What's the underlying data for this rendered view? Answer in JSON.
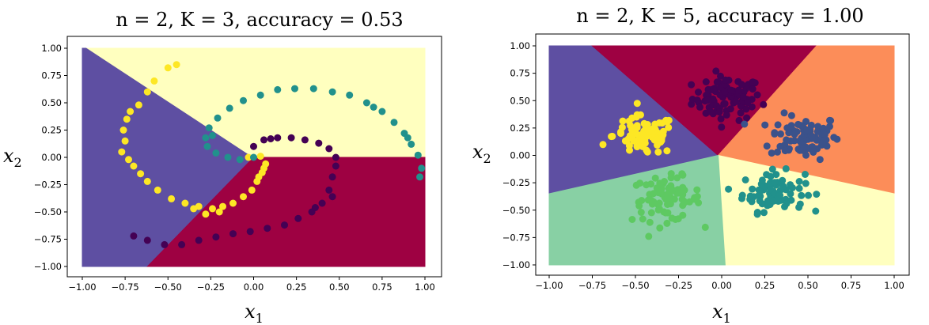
{
  "chart_data": [
    {
      "type": "scatter",
      "title": "n = 2, K = 3, accuracy = 0.53",
      "xlabel": "x1",
      "ylabel": "x2",
      "xlim": [
        -1.05,
        1.05
      ],
      "ylim": [
        -1.05,
        1.05
      ],
      "xticks": [
        "−1.00",
        "−0.75",
        "−0.50",
        "−0.25",
        "0.00",
        "0.25",
        "0.50",
        "0.75",
        "1.00"
      ],
      "yticks": [
        "−1.00",
        "−0.75",
        "−0.50",
        "−0.25",
        "0.00",
        "0.25",
        "0.50",
        "0.75",
        "1.00"
      ],
      "grid": false,
      "dataset": "three interleaved spirals",
      "background_regions": [
        {
          "color": "#5e4fa2",
          "polygon": [
            [
              -1,
              1
            ],
            [
              -0.97,
              1
            ],
            [
              0,
              0
            ],
            [
              -0.62,
              -1
            ],
            [
              -1,
              -1
            ]
          ]
        },
        {
          "color": "#ffffbf",
          "polygon": [
            [
              -0.97,
              1
            ],
            [
              1,
              1
            ],
            [
              1,
              0
            ],
            [
              0,
              0
            ]
          ]
        },
        {
          "color": "#9e0142",
          "polygon": [
            [
              0,
              0
            ],
            [
              1,
              0
            ],
            [
              1,
              -1
            ],
            [
              -0.62,
              -1
            ]
          ]
        }
      ],
      "series": [
        {
          "color": "#fde725",
          "points": [
            [
              -0.45,
              0.85
            ],
            [
              -0.5,
              0.82
            ],
            [
              -0.58,
              0.7
            ],
            [
              -0.62,
              0.6
            ],
            [
              -0.67,
              0.48
            ],
            [
              -0.72,
              0.42
            ],
            [
              -0.74,
              0.35
            ],
            [
              -0.76,
              0.25
            ],
            [
              -0.75,
              0.15
            ],
            [
              -0.77,
              0.05
            ],
            [
              -0.73,
              -0.02
            ],
            [
              -0.7,
              -0.08
            ],
            [
              -0.66,
              -0.15
            ],
            [
              -0.62,
              -0.22
            ],
            [
              -0.56,
              -0.3
            ],
            [
              -0.48,
              -0.38
            ],
            [
              -0.4,
              -0.42
            ],
            [
              -0.32,
              -0.45
            ],
            [
              -0.24,
              -0.47
            ],
            [
              -0.18,
              -0.45
            ],
            [
              -0.12,
              -0.42
            ],
            [
              -0.06,
              -0.36
            ],
            [
              -0.01,
              -0.3
            ],
            [
              0.02,
              -0.22
            ],
            [
              0.05,
              -0.14
            ],
            [
              0.07,
              -0.06
            ],
            [
              0.04,
              0.01
            ],
            [
              -0.03,
              0.0
            ],
            [
              -0.35,
              -0.47
            ],
            [
              -0.28,
              -0.52
            ],
            [
              -0.2,
              -0.5
            ],
            [
              0.03,
              -0.18
            ],
            [
              0.06,
              -0.1
            ]
          ]
        },
        {
          "color": "#21918c",
          "points": [
            [
              0.97,
              -0.18
            ],
            [
              0.98,
              -0.1
            ],
            [
              0.96,
              0.02
            ],
            [
              0.92,
              0.12
            ],
            [
              0.88,
              0.22
            ],
            [
              0.82,
              0.32
            ],
            [
              0.75,
              0.42
            ],
            [
              0.66,
              0.5
            ],
            [
              0.56,
              0.57
            ],
            [
              0.46,
              0.6
            ],
            [
              0.35,
              0.63
            ],
            [
              0.24,
              0.63
            ],
            [
              0.14,
              0.62
            ],
            [
              0.04,
              0.57
            ],
            [
              -0.06,
              0.52
            ],
            [
              -0.14,
              0.45
            ],
            [
              -0.21,
              0.36
            ],
            [
              -0.26,
              0.27
            ],
            [
              -0.28,
              0.18
            ],
            [
              -0.27,
              0.1
            ],
            [
              -0.22,
              0.04
            ],
            [
              -0.15,
              0.0
            ],
            [
              -0.08,
              -0.02
            ],
            [
              0.0,
              0.0
            ],
            [
              0.9,
              0.18
            ],
            [
              0.7,
              0.46
            ],
            [
              -0.24,
              0.2
            ]
          ]
        },
        {
          "color": "#440154",
          "points": [
            [
              0.0,
              0.1
            ],
            [
              0.06,
              0.16
            ],
            [
              0.14,
              0.18
            ],
            [
              0.22,
              0.18
            ],
            [
              0.3,
              0.16
            ],
            [
              0.38,
              0.13
            ],
            [
              0.44,
              0.08
            ],
            [
              0.48,
              0.0
            ],
            [
              0.48,
              -0.08
            ],
            [
              0.46,
              -0.18
            ],
            [
              0.44,
              -0.3
            ],
            [
              0.4,
              -0.42
            ],
            [
              0.34,
              -0.5
            ],
            [
              0.26,
              -0.56
            ],
            [
              0.18,
              -0.62
            ],
            [
              0.08,
              -0.65
            ],
            [
              -0.02,
              -0.68
            ],
            [
              -0.12,
              -0.7
            ],
            [
              -0.22,
              -0.73
            ],
            [
              -0.32,
              -0.76
            ],
            [
              -0.42,
              -0.8
            ],
            [
              -0.52,
              -0.8
            ],
            [
              -0.62,
              -0.76
            ],
            [
              -0.7,
              -0.72
            ],
            [
              0.46,
              -0.36
            ],
            [
              0.36,
              -0.46
            ],
            [
              0.1,
              0.17
            ]
          ]
        }
      ]
    },
    {
      "type": "scatter",
      "title": "n = 2, K = 5, accuracy = 1.00",
      "xlabel": "x1",
      "ylabel": "x2",
      "xlim": [
        -1.05,
        1.05
      ],
      "ylim": [
        -1.05,
        1.05
      ],
      "xticks": [
        "−1.00",
        "−0.75",
        "−0.50",
        "−0.25",
        "0.00",
        "0.25",
        "0.50",
        "0.75",
        "1.00"
      ],
      "yticks": [
        "−1.00",
        "−0.75",
        "−0.50",
        "−0.25",
        "0.00",
        "0.25",
        "0.50",
        "0.75",
        "1.00"
      ],
      "grid": false,
      "dataset": "five gaussian blobs",
      "background_regions": [
        {
          "color": "#5e4fa2",
          "polygon": [
            [
              -1,
              1
            ],
            [
              -0.75,
              1
            ],
            [
              -0.02,
              0.0
            ],
            [
              -1,
              -0.35
            ]
          ]
        },
        {
          "color": "#9e0142",
          "polygon": [
            [
              -0.75,
              1
            ],
            [
              0.55,
              1
            ],
            [
              -0.02,
              0.0
            ]
          ]
        },
        {
          "color": "#fc8d59",
          "polygon": [
            [
              0.55,
              1
            ],
            [
              1,
              1
            ],
            [
              1,
              -0.35
            ],
            [
              -0.02,
              0.0
            ]
          ]
        },
        {
          "color": "#ffffbf",
          "polygon": [
            [
              -0.02,
              0.0
            ],
            [
              1,
              -0.35
            ],
            [
              1,
              -1
            ],
            [
              0.02,
              -1
            ]
          ]
        },
        {
          "color": "#88d0a4",
          "polygon": [
            [
              -1,
              -0.35
            ],
            [
              -0.02,
              0.0
            ],
            [
              0.02,
              -1
            ],
            [
              -1,
              -1
            ]
          ]
        }
      ],
      "blobs": [
        {
          "color": "#440154",
          "center": [
            0.03,
            0.52
          ],
          "spread": 0.1,
          "count": 90
        },
        {
          "color": "#3b528b",
          "center": [
            0.48,
            0.17
          ],
          "spread": 0.1,
          "count": 90
        },
        {
          "color": "#21918c",
          "center": [
            0.3,
            -0.33
          ],
          "spread": 0.09,
          "count": 80
        },
        {
          "color": "#5ec962",
          "center": [
            -0.32,
            -0.4
          ],
          "spread": 0.1,
          "count": 80
        },
        {
          "color": "#fde725",
          "center": [
            -0.45,
            0.18
          ],
          "spread": 0.09,
          "count": 90
        }
      ]
    }
  ]
}
